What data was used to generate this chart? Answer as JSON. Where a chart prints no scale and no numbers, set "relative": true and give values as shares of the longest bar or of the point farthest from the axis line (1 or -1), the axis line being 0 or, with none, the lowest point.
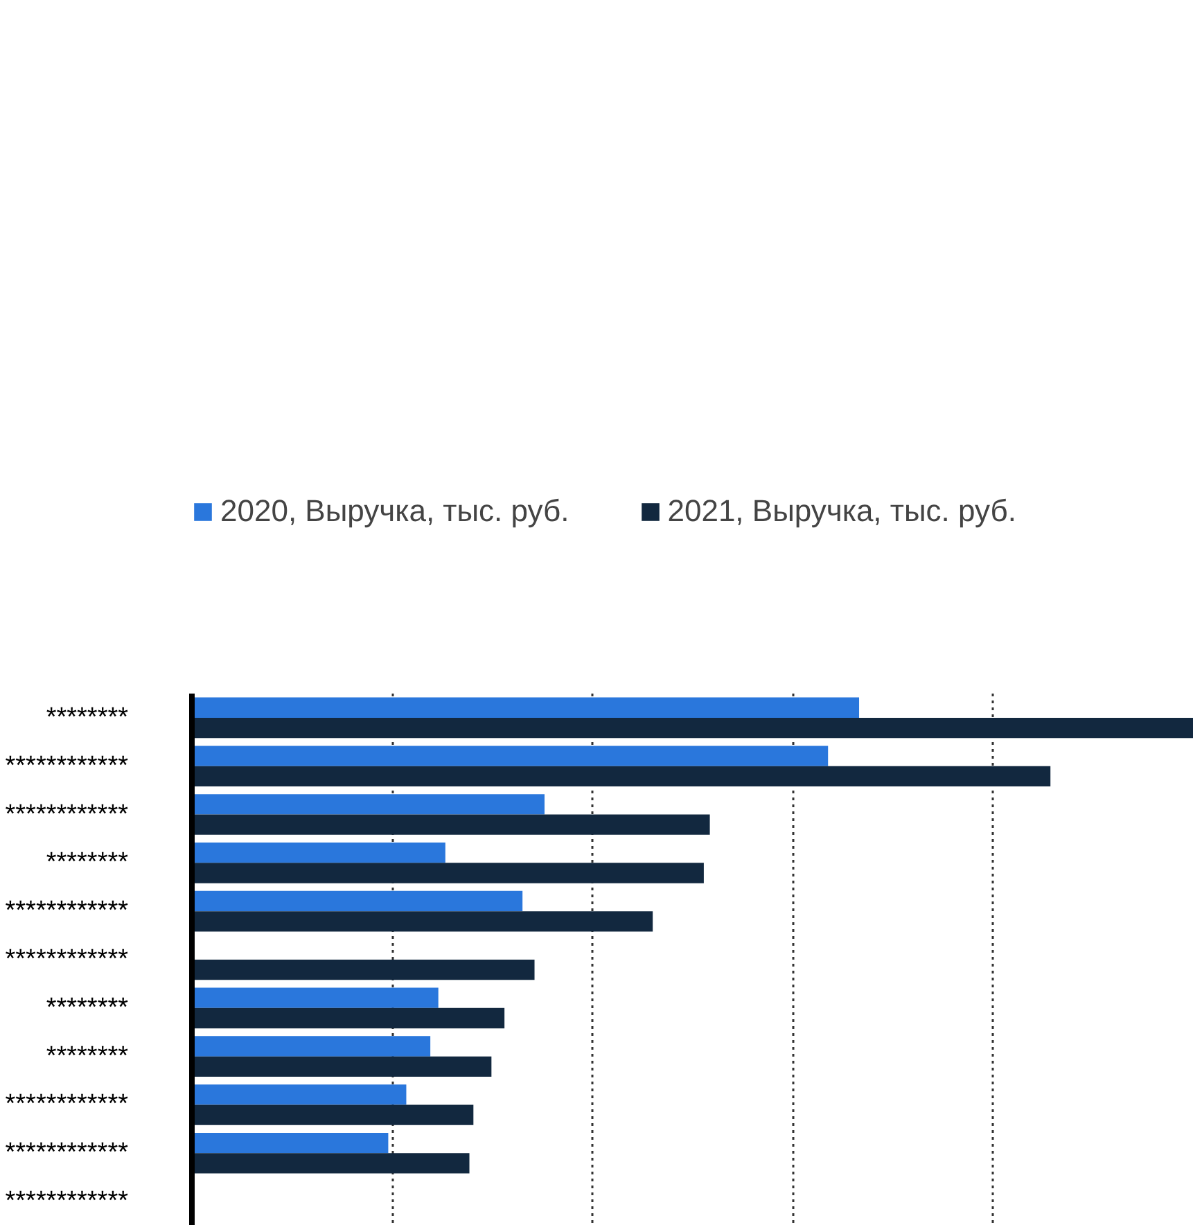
{
  "chart_data": {
    "type": "bar",
    "orientation": "horizontal",
    "relative": true,
    "categories": [
      "********",
      "************",
      "************",
      "********",
      "************",
      "************",
      "********",
      "********",
      "************",
      "************",
      "************"
    ],
    "series": [
      {
        "name": "2020, Выручка, тыс. руб.",
        "color": "#2a77dc",
        "values": [
          0.666,
          0.635,
          0.352,
          0.253,
          0.33,
          null,
          0.246,
          0.238,
          0.214,
          0.196,
          null
        ]
      },
      {
        "name": "2021, Выручка, тыс. руб.",
        "color": "#12283f",
        "values": [
          1,
          0.857,
          0.517,
          0.511,
          0.46,
          0.342,
          0.312,
          0.299,
          0.281,
          0.277,
          null
        ]
      }
    ],
    "grid": "x",
    "legend": "top left",
    "tick_labels": "y"
  }
}
